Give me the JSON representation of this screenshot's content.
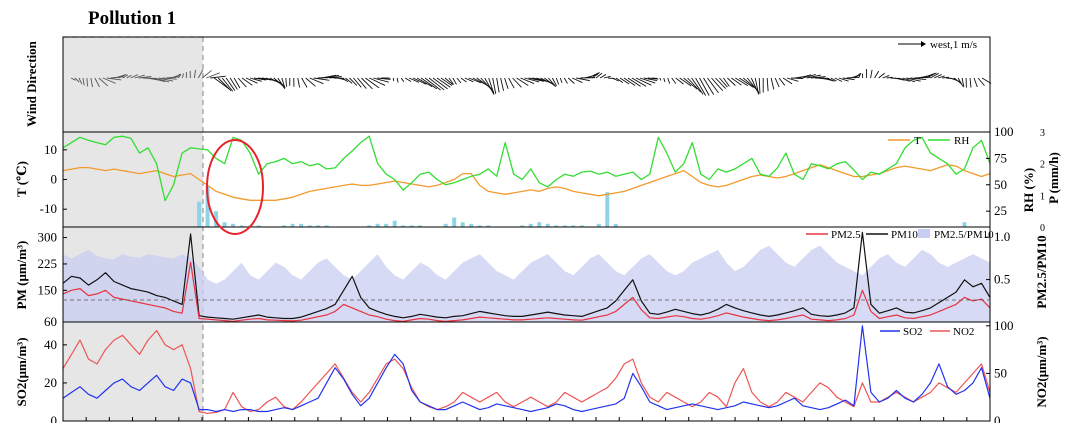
{
  "figure": {
    "title": "Pollution 1"
  },
  "colors": {
    "T": "#f39a2e",
    "RH": "#33dd33",
    "P": "#8fd3e6",
    "PM25": "#e8333f",
    "PM10": "#111111",
    "ratio": "#c9cdf2",
    "SO2": "#2233ee",
    "NO2": "#ee5555",
    "shade": "#e6e6e6"
  },
  "chart_data": [
    {
      "type": "line",
      "panel": "wind",
      "ylabel": "Wind Direction",
      "legend": {
        "label": "west,1 m/s",
        "position": "top-right"
      },
      "note": "wind vectors (stick plot)"
    },
    {
      "type": "line",
      "panel": "meteorology",
      "ylabel": "T (℃)",
      "yticks": [
        "10",
        "0",
        "-10"
      ],
      "ylim": [
        -16,
        16
      ],
      "y2label": "RH (%)",
      "y2ticks": [
        "100",
        "75",
        "50",
        "25"
      ],
      "y2lim": [
        10,
        100
      ],
      "y3label": "P (mm/h)",
      "y3ticks": [
        "3",
        "2",
        "1",
        "0"
      ],
      "y3lim": [
        0,
        3
      ],
      "legend": {
        "position": "top-right"
      },
      "series": [
        {
          "name": "T",
          "axis": "left",
          "values": [
            3,
            3.5,
            4,
            4,
            3.5,
            3,
            3.5,
            3,
            2.5,
            2,
            2.5,
            3,
            2,
            1,
            1.5,
            2,
            0,
            -2,
            -4,
            -5,
            -6,
            -6.5,
            -7,
            -7,
            -7,
            -7,
            -6.5,
            -6,
            -5,
            -4,
            -3.5,
            -3,
            -2.5,
            -2,
            -1.5,
            -2,
            -2,
            -1.5,
            -1,
            -0.5,
            -1,
            -1.5,
            -2,
            -2.5,
            -2,
            -1,
            0,
            2,
            2,
            -2,
            -4,
            -4.5,
            -5,
            -4.5,
            -4,
            -3.5,
            -4,
            -3,
            -2.5,
            -3,
            -4,
            -4.5,
            -5,
            -5.5,
            -5,
            -4.5,
            -4,
            -3,
            -2,
            -1,
            0,
            1,
            2,
            3,
            1,
            -1,
            -2,
            -2.5,
            -2,
            -1,
            0,
            1,
            1.5,
            1,
            0.5,
            1,
            2,
            3,
            4,
            5,
            4,
            3,
            2,
            1,
            1,
            1.5,
            2,
            3,
            4,
            4.5,
            4,
            3.5,
            3,
            4,
            5,
            4.5,
            3,
            2,
            1,
            2
          ]
        },
        {
          "name": "RH",
          "axis": "right",
          "values": [
            85,
            90,
            95,
            92,
            90,
            88,
            95,
            96,
            94,
            80,
            85,
            70,
            35,
            50,
            80,
            85,
            84,
            83,
            75,
            70,
            95,
            92,
            80,
            60,
            70,
            72,
            75,
            70,
            72,
            68,
            70,
            65,
            66,
            75,
            82,
            90,
            96,
            70,
            60,
            55,
            45,
            52,
            60,
            62,
            55,
            50,
            52,
            55,
            58,
            60,
            65,
            58,
            90,
            60,
            55,
            65,
            52,
            48,
            55,
            60,
            58,
            62,
            63,
            60,
            62,
            58,
            60,
            62,
            55,
            60,
            95,
            80,
            62,
            70,
            90,
            60,
            55,
            65,
            62,
            65,
            70,
            75,
            60,
            58,
            66,
            80,
            60,
            55,
            70,
            68,
            65,
            70,
            72,
            64,
            55,
            62,
            60,
            65,
            70,
            85,
            92,
            95,
            80,
            75,
            70,
            60,
            65,
            85,
            92,
            70
          ]
        },
        {
          "name": "P",
          "axis": "right2",
          "values": [
            0,
            0,
            0,
            0,
            0,
            0,
            0,
            0,
            0,
            0,
            0,
            0,
            0,
            0,
            0,
            0,
            0.8,
            1.3,
            0.5,
            0.15,
            0.1,
            0.05,
            0.05,
            0.05,
            0,
            0,
            0.05,
            0.1,
            0.1,
            0.05,
            0.05,
            0.05,
            0,
            0,
            0,
            0,
            0.05,
            0.1,
            0.1,
            0.2,
            0.05,
            0.05,
            0.05,
            0,
            0,
            0.1,
            0.3,
            0.15,
            0.1,
            0.05,
            0.05,
            0,
            0,
            0,
            0.05,
            0.1,
            0.15,
            0.1,
            0.05,
            0.05,
            0.05,
            0.05,
            0,
            0.1,
            1.1,
            0.1,
            0,
            0,
            0,
            0,
            0,
            0,
            0,
            0,
            0,
            0,
            0,
            0,
            0,
            0,
            0,
            0,
            0,
            0,
            0,
            0,
            0,
            0,
            0,
            0,
            0,
            0,
            0,
            0,
            0,
            0,
            0,
            0,
            0,
            0,
            0,
            0,
            0,
            0,
            0,
            0,
            0.15,
            0,
            0,
            0
          ]
        }
      ]
    },
    {
      "type": "line",
      "panel": "particulate",
      "ylabel": "PM (μm/m³)",
      "yticks": [
        "60",
        "150",
        "225",
        "300"
      ],
      "ylim": [
        60,
        330
      ],
      "y2label": "PM2.5/PM10",
      "y2ticks": [
        "0.5",
        "1.0"
      ],
      "y2lim": [
        0,
        1.12
      ],
      "legend": {
        "position": "top-right"
      },
      "series": [
        {
          "name": "PM2.5",
          "axis": "left",
          "values": [
            140,
            150,
            155,
            135,
            140,
            150,
            130,
            125,
            120,
            115,
            110,
            105,
            100,
            90,
            85,
            230,
            70,
            68,
            66,
            64,
            62,
            65,
            68,
            70,
            66,
            65,
            64,
            63,
            65,
            70,
            75,
            80,
            90,
            110,
            100,
            90,
            80,
            75,
            68,
            64,
            62,
            66,
            70,
            68,
            64,
            62,
            64,
            66,
            70,
            74,
            72,
            70,
            68,
            66,
            66,
            68,
            70,
            72,
            70,
            68,
            66,
            65,
            70,
            75,
            80,
            90,
            110,
            130,
            95,
            72,
            70,
            74,
            78,
            75,
            70,
            68,
            72,
            78,
            86,
            80,
            74,
            70,
            66,
            64,
            66,
            70,
            75,
            80,
            68,
            66,
            64,
            66,
            70,
            80,
            150,
            90,
            70,
            75,
            80,
            72,
            70,
            75,
            80,
            90,
            100,
            110,
            130,
            120,
            125,
            100
          ]
        },
        {
          "name": "PM10",
          "axis": "left",
          "values": [
            170,
            190,
            185,
            165,
            180,
            200,
            175,
            165,
            155,
            150,
            145,
            135,
            130,
            120,
            110,
            310,
            78,
            74,
            72,
            70,
            68,
            72,
            76,
            80,
            74,
            72,
            70,
            70,
            74,
            82,
            90,
            98,
            110,
            150,
            190,
            130,
            100,
            90,
            82,
            76,
            72,
            76,
            82,
            78,
            74,
            72,
            76,
            78,
            84,
            90,
            86,
            82,
            78,
            76,
            76,
            80,
            84,
            88,
            84,
            80,
            78,
            76,
            84,
            92,
            100,
            120,
            150,
            180,
            120,
            85,
            82,
            88,
            96,
            90,
            84,
            80,
            86,
            96,
            110,
            100,
            92,
            86,
            80,
            76,
            80,
            86,
            92,
            100,
            82,
            78,
            76,
            80,
            86,
            100,
            315,
            110,
            85,
            92,
            100,
            88,
            86,
            92,
            100,
            115,
            130,
            145,
            180,
            160,
            170,
            130
          ]
        },
        {
          "name": "PM2.5/PM10",
          "axis": "right",
          "values": [
            0.8,
            0.75,
            0.8,
            0.85,
            0.78,
            0.75,
            0.74,
            0.8,
            0.77,
            0.76,
            0.8,
            0.78,
            0.76,
            0.75,
            0.8,
            0.76,
            0.65,
            0.5,
            0.45,
            0.5,
            0.6,
            0.7,
            0.55,
            0.5,
            0.6,
            0.7,
            0.65,
            0.55,
            0.5,
            0.6,
            0.7,
            0.75,
            0.65,
            0.55,
            0.5,
            0.6,
            0.7,
            0.8,
            0.65,
            0.55,
            0.5,
            0.6,
            0.7,
            0.65,
            0.55,
            0.5,
            0.6,
            0.7,
            0.75,
            0.8,
            0.7,
            0.6,
            0.55,
            0.5,
            0.6,
            0.7,
            0.75,
            0.8,
            0.7,
            0.6,
            0.55,
            0.65,
            0.75,
            0.8,
            0.7,
            0.6,
            0.55,
            0.65,
            0.75,
            0.8,
            0.7,
            0.6,
            0.55,
            0.6,
            0.7,
            0.75,
            0.8,
            0.85,
            0.7,
            0.6,
            0.65,
            0.75,
            0.85,
            0.9,
            0.8,
            0.7,
            0.65,
            0.75,
            0.85,
            0.9,
            0.8,
            0.7,
            0.65,
            0.6,
            0.55,
            0.65,
            0.75,
            0.8,
            0.7,
            0.65,
            0.75,
            0.85,
            0.8,
            0.7,
            0.65,
            0.7,
            0.75,
            0.8,
            0.75,
            0.7
          ]
        }
      ]
    },
    {
      "type": "line",
      "panel": "gases",
      "ylabel": "SO2(μm/m³)",
      "yticks": [
        "0",
        "20",
        "40"
      ],
      "ylim": [
        0,
        52
      ],
      "y2label": "NO2(μm/m³)",
      "y2ticks": [
        "0",
        "50",
        "100"
      ],
      "y2lim": [
        0,
        104
      ],
      "legend": {
        "position": "top-right"
      },
      "series": [
        {
          "name": "SO2",
          "axis": "left",
          "values": [
            12,
            15,
            18,
            14,
            12,
            16,
            20,
            22,
            18,
            16,
            20,
            24,
            18,
            16,
            22,
            20,
            6,
            6,
            5,
            6,
            5,
            6,
            6,
            5,
            5,
            6,
            7,
            6,
            8,
            10,
            12,
            20,
            28,
            22,
            14,
            8,
            12,
            20,
            28,
            35,
            30,
            16,
            10,
            8,
            6,
            6,
            8,
            10,
            8,
            6,
            7,
            9,
            8,
            7,
            6,
            5,
            6,
            7,
            9,
            8,
            6,
            5,
            6,
            7,
            8,
            9,
            12,
            25,
            18,
            10,
            8,
            6,
            7,
            8,
            9,
            8,
            7,
            6,
            7,
            8,
            10,
            9,
            8,
            7,
            8,
            10,
            12,
            8,
            7,
            6,
            7,
            9,
            11,
            8,
            50,
            15,
            10,
            12,
            16,
            12,
            10,
            14,
            20,
            30,
            18,
            14,
            16,
            20,
            28,
            12
          ]
        },
        {
          "name": "NO2",
          "axis": "right",
          "values": [
            55,
            70,
            85,
            65,
            60,
            75,
            85,
            90,
            80,
            70,
            85,
            95,
            80,
            75,
            80,
            55,
            10,
            8,
            9,
            12,
            30,
            15,
            10,
            12,
            20,
            25,
            15,
            12,
            20,
            30,
            40,
            50,
            60,
            45,
            30,
            20,
            30,
            45,
            60,
            65,
            55,
            35,
            20,
            15,
            12,
            15,
            20,
            30,
            25,
            20,
            25,
            30,
            20,
            15,
            20,
            25,
            20,
            15,
            20,
            30,
            25,
            20,
            25,
            30,
            35,
            45,
            60,
            65,
            40,
            25,
            20,
            30,
            25,
            20,
            15,
            20,
            30,
            25,
            15,
            40,
            55,
            30,
            20,
            15,
            20,
            30,
            25,
            20,
            30,
            40,
            35,
            25,
            20,
            15,
            40,
            20,
            20,
            25,
            30,
            25,
            20,
            25,
            30,
            40,
            35,
            30,
            40,
            50,
            60,
            30
          ]
        }
      ]
    }
  ]
}
